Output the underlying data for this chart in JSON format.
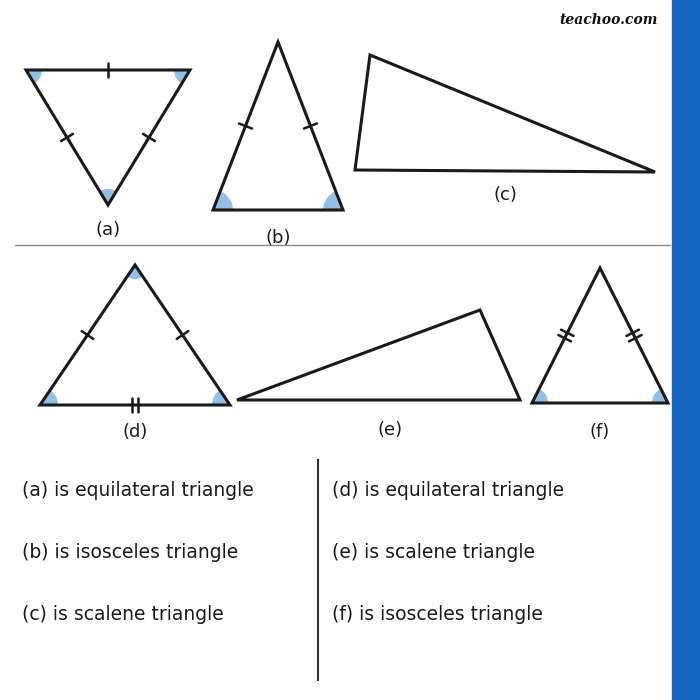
{
  "bg_color": "#ffffff",
  "line_color": "#1a1a1a",
  "fill_color": "#5b9bd5",
  "fill_alpha": 0.65,
  "watermark": "teachoo.com",
  "labels": [
    "(a)",
    "(b)",
    "(c)",
    "(d)",
    "(e)",
    "(f)"
  ],
  "text_lines_left": [
    "(a) is equilateral triangle",
    "(b) is isosceles triangle",
    "(c) is scalene triangle"
  ],
  "text_lines_right": [
    "(d) is equilateral triangle",
    "(e) is scalene triangle",
    "(f) is isosceles triangle"
  ],
  "sidebar_color": "#1565c0",
  "divider_color": "#888888",
  "text_divider_color": "#333333"
}
